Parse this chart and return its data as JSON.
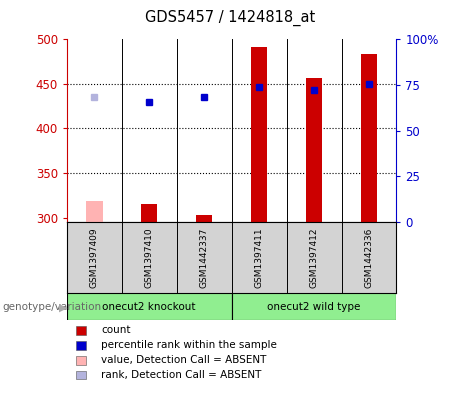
{
  "title": "GDS5457 / 1424818_at",
  "samples": [
    "GSM1397409",
    "GSM1397410",
    "GSM1442337",
    "GSM1397411",
    "GSM1397412",
    "GSM1442336"
  ],
  "group_labels": [
    "onecut2 knockout",
    "onecut2 wild type"
  ],
  "counts": [
    null,
    315,
    303,
    491,
    457,
    483
  ],
  "counts_absent": [
    319,
    null,
    null,
    null,
    null,
    null
  ],
  "ranks": [
    null,
    430,
    435,
    447,
    443,
    450
  ],
  "ranks_absent": [
    435,
    null,
    null,
    null,
    null,
    null
  ],
  "ylim_left": [
    295,
    500
  ],
  "ylim_right": [
    0,
    100
  ],
  "yticks_left": [
    300,
    350,
    400,
    450,
    500
  ],
  "yticks_right": [
    0,
    25,
    50,
    75,
    100
  ],
  "ytick_labels_left": [
    "300",
    "350",
    "400",
    "450",
    "500"
  ],
  "ytick_labels_right": [
    "0",
    "25",
    "50",
    "75",
    "100%"
  ],
  "dotted_lines": [
    350,
    400,
    450
  ],
  "bar_color": "#cc0000",
  "bar_absent_color": "#ffb3b3",
  "rank_color": "#0000cc",
  "rank_absent_color": "#b3b3dd",
  "bar_width": 0.3,
  "left_axis_color": "#cc0000",
  "right_axis_color": "#0000cc",
  "bg_color": "#ffffff",
  "sample_bg": "#d3d3d3",
  "green_bg": "#90ee90",
  "legend_items": [
    {
      "label": "count",
      "color": "#cc0000"
    },
    {
      "label": "percentile rank within the sample",
      "color": "#0000cc"
    },
    {
      "label": "value, Detection Call = ABSENT",
      "color": "#ffb3b3"
    },
    {
      "label": "rank, Detection Call = ABSENT",
      "color": "#b3b3dd"
    }
  ]
}
